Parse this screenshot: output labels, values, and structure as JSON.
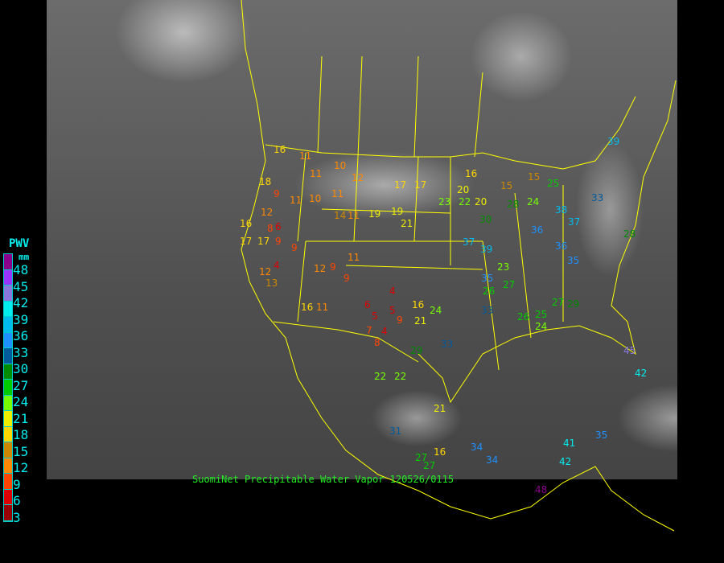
{
  "caption": "SuomiNet Precipitable Water Vapor  120526/0115",
  "legend": {
    "title": "PWV",
    "unit": "mm",
    "ticks": [
      "48",
      "45",
      "42",
      "39",
      "36",
      "33",
      "30",
      "27",
      "24",
      "21",
      "18",
      "15",
      "12",
      "9",
      "6",
      "3"
    ],
    "colors": [
      "#8b008b",
      "#9933ff",
      "#8877dd",
      "#00eeee",
      "#00bbee",
      "#1e90ff",
      "#005a9c",
      "#008b00",
      "#00cc00",
      "#77ff00",
      "#eeee00",
      "#ffd700",
      "#cc8800",
      "#ff8800",
      "#ff4400",
      "#dd0000",
      "#990000"
    ]
  },
  "map_colors": {
    "borders": "#ffff00",
    "background": "#000000"
  },
  "stations": [
    16,
    11,
    10,
    11,
    12,
    11,
    15,
    17,
    17,
    16,
    20,
    23,
    22,
    20,
    15,
    18,
    9,
    11,
    10,
    12,
    14,
    11,
    19,
    19,
    21,
    16,
    17,
    17,
    9,
    6,
    8,
    9,
    12,
    9,
    9,
    11,
    4,
    12,
    13,
    16,
    11,
    4,
    6,
    5,
    5,
    4,
    9,
    7,
    8,
    16,
    21,
    24,
    29,
    22,
    31,
    21,
    27,
    16,
    27,
    34,
    33,
    37,
    39,
    35,
    33,
    30,
    26,
    23,
    27,
    28,
    24,
    25,
    26,
    24,
    27,
    29,
    35,
    36,
    38,
    37,
    45,
    42,
    41,
    35,
    34,
    48,
    42,
    33,
    36,
    39,
    28,
    25,
    22
  ]
}
